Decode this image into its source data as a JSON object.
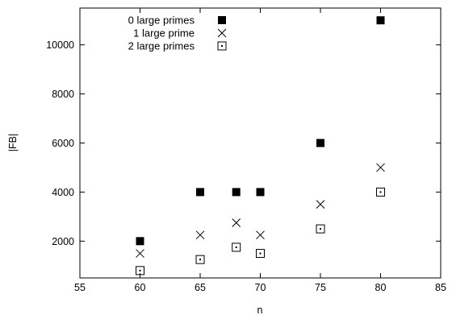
{
  "chart_data": {
    "type": "scatter",
    "title": "",
    "xlabel": "n",
    "ylabel": "|FB|",
    "xlim": [
      55,
      85
    ],
    "ylim": [
      500,
      11500
    ],
    "xticks": [
      55,
      60,
      65,
      70,
      75,
      80,
      85
    ],
    "yticks": [
      2000,
      4000,
      6000,
      8000,
      10000
    ],
    "grid": false,
    "legend_position": "top-left",
    "series": [
      {
        "name": "0 large primes",
        "marker": "filled-square",
        "x": [
          60,
          65,
          68,
          70,
          75,
          80
        ],
        "y": [
          2000,
          4000,
          4000,
          4000,
          6000,
          11000
        ]
      },
      {
        "name": "1 large prime",
        "marker": "cross",
        "x": [
          60,
          65,
          68,
          70,
          75,
          80
        ],
        "y": [
          1500,
          2250,
          2750,
          2250,
          3500,
          5000
        ]
      },
      {
        "name": "2 large primes",
        "marker": "dotted-square",
        "x": [
          60,
          65,
          68,
          70,
          75,
          80
        ],
        "y": [
          800,
          1250,
          1750,
          1500,
          2500,
          4000
        ]
      }
    ]
  }
}
